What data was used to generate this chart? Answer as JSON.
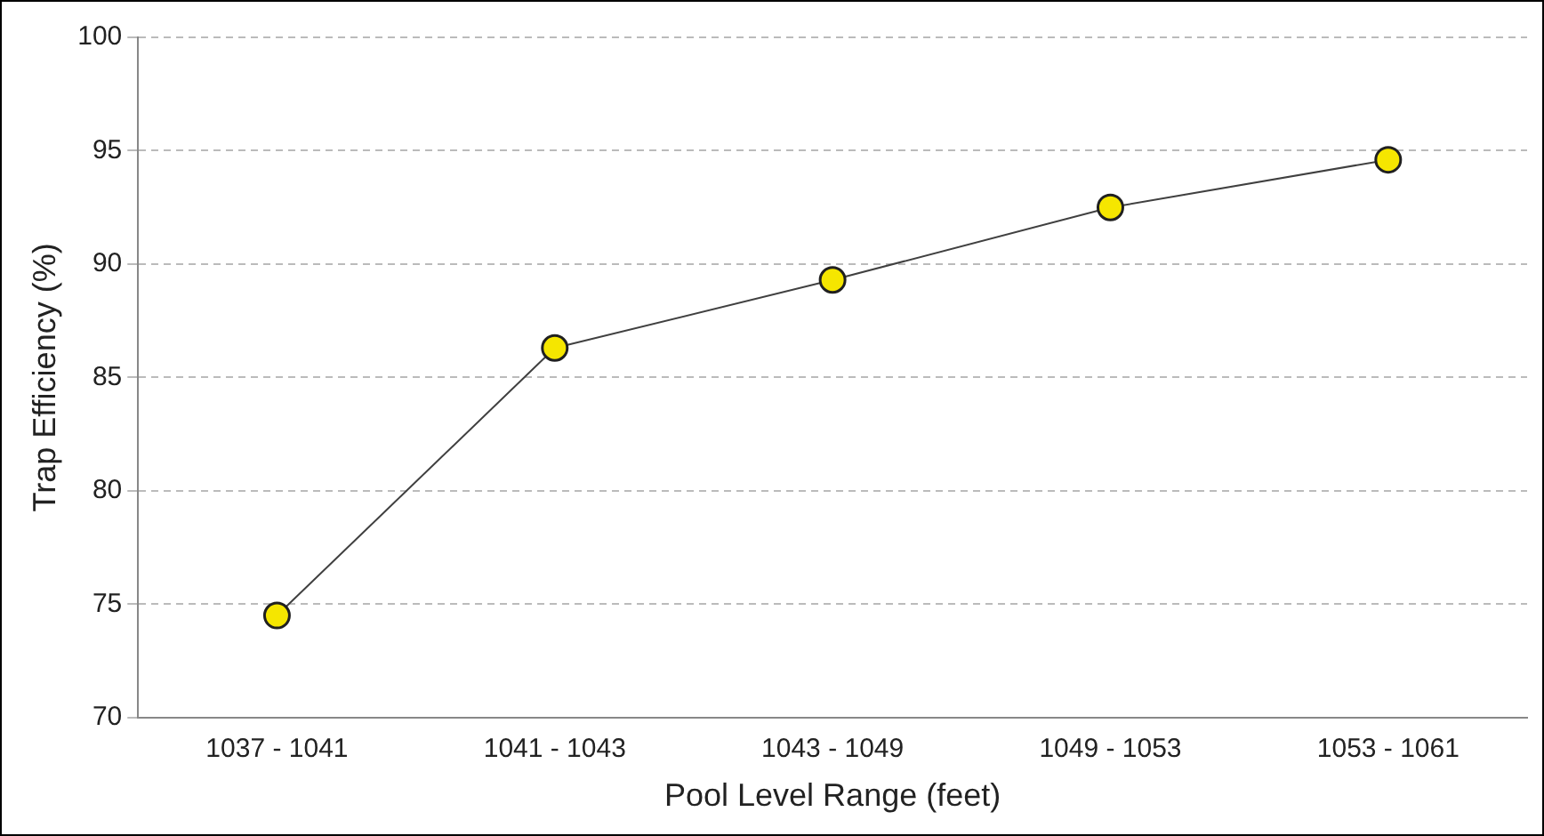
{
  "chart_data": {
    "type": "line",
    "xlabel": "Pool Level Range (feet)",
    "ylabel": "Trap Efficiency (%)",
    "categories": [
      "1037 - 1041",
      "1041 - 1043",
      "1043 - 1049",
      "1049 - 1053",
      "1053 - 1061"
    ],
    "series": [
      {
        "color": "#404040",
        "values": [
          74.5,
          86.3,
          89.3,
          92.5,
          94.6
        ]
      }
    ],
    "ylim": [
      70,
      100
    ],
    "yticks": [
      70,
      75,
      80,
      85,
      90,
      95,
      100
    ],
    "grid": "y",
    "legend": false,
    "marker": "circle",
    "line_style": "solid"
  }
}
